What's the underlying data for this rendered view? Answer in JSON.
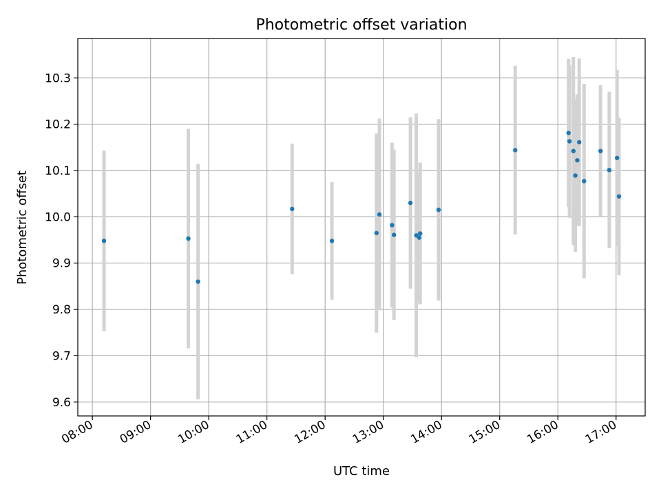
{
  "chart_data": {
    "type": "scatter",
    "title": "Photometric offset variation",
    "xlabel": "UTC time",
    "ylabel": "Photometric offset",
    "x_tick_labels": [
      "08:00",
      "09:00",
      "10:00",
      "11:00",
      "12:00",
      "13:00",
      "14:00",
      "15:00",
      "16:00",
      "17:00"
    ],
    "y_tick_labels": [
      "9.6",
      "9.7",
      "9.8",
      "9.9",
      "10.0",
      "10.1",
      "10.2",
      "10.3"
    ],
    "xlim": [
      "07:45",
      "17:30"
    ],
    "ylim": [
      9.57,
      10.385
    ],
    "grid": true,
    "colors": {
      "points": "#1f77b4",
      "errorbars": "#d3d3d3",
      "grid": "#b0b0b0"
    },
    "points": [
      {
        "x": "08:12",
        "y": 9.948,
        "err": 0.195
      },
      {
        "x": "09:39",
        "y": 9.953,
        "err": 0.237
      },
      {
        "x": "09:49",
        "y": 9.86,
        "err": 0.254
      },
      {
        "x": "11:26",
        "y": 10.017,
        "err": 0.141
      },
      {
        "x": "12:07",
        "y": 9.948,
        "err": 0.127
      },
      {
        "x": "12:53",
        "y": 9.965,
        "err": 0.215
      },
      {
        "x": "12:56",
        "y": 10.005,
        "err": 0.207
      },
      {
        "x": "13:09",
        "y": 9.982,
        "err": 0.178
      },
      {
        "x": "13:11",
        "y": 9.961,
        "err": 0.184
      },
      {
        "x": "13:28",
        "y": 10.03,
        "err": 0.185
      },
      {
        "x": "13:34",
        "y": 9.96,
        "err": 0.263
      },
      {
        "x": "13:37",
        "y": 9.955,
        "err": 0.14
      },
      {
        "x": "13:38",
        "y": 9.964,
        "err": 0.153
      },
      {
        "x": "13:57",
        "y": 10.015,
        "err": 0.196
      },
      {
        "x": "15:16",
        "y": 10.144,
        "err": 0.182
      },
      {
        "x": "16:11",
        "y": 10.181,
        "err": 0.16
      },
      {
        "x": "16:12",
        "y": 10.163,
        "err": 0.165
      },
      {
        "x": "16:16",
        "y": 10.142,
        "err": 0.203
      },
      {
        "x": "16:18",
        "y": 10.089,
        "err": 0.165
      },
      {
        "x": "16:20",
        "y": 10.122,
        "err": 0.142
      },
      {
        "x": "16:22",
        "y": 10.161,
        "err": 0.181
      },
      {
        "x": "16:27",
        "y": 10.077,
        "err": 0.21
      },
      {
        "x": "16:44",
        "y": 10.142,
        "err": 0.142
      },
      {
        "x": "16:53",
        "y": 10.101,
        "err": 0.169
      },
      {
        "x": "17:01",
        "y": 10.127,
        "err": 0.19
      },
      {
        "x": "17:03",
        "y": 10.044,
        "err": 0.17
      }
    ]
  }
}
